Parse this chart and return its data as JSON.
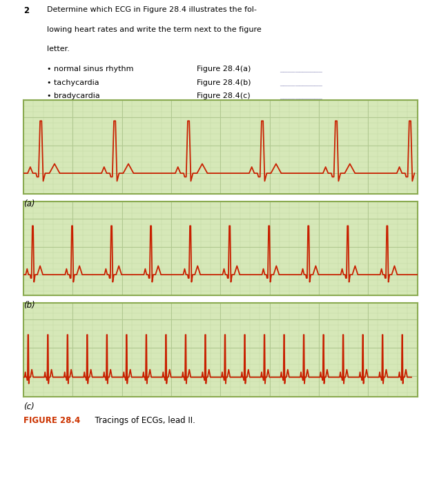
{
  "bullets": [
    "normal sinus rhythm",
    "tachycardia",
    "bradycardia"
  ],
  "figure_labels": [
    "Figure 28.4(a)",
    "Figure 28.4(b)",
    "Figure 28.4(c)"
  ],
  "caption_bold": "FIGURE 28.4",
  "caption_rest": "  Tracings of ECGs, lead II.",
  "panel_labels": [
    "(a)",
    "(b)",
    "(c)"
  ],
  "ecg_color": "#c82000",
  "grid_bg": "#d6e8b8",
  "grid_major_color": "#b0c890",
  "grid_minor_color": "#c5dba5",
  "border_color": "#8aaa50",
  "bg_color": "#ffffff",
  "caption_color": "#cc3300",
  "panel_a_bpm": 40,
  "panel_b_bpm": 75,
  "panel_c_bpm": 150
}
